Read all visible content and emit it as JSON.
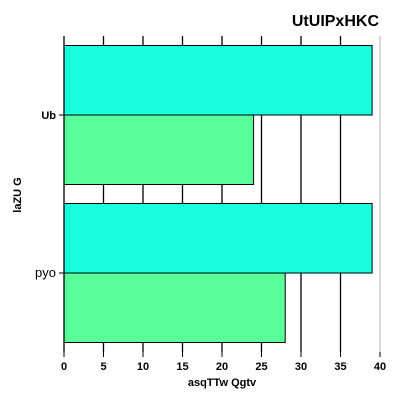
{
  "chart_data": {
    "type": "bar",
    "orientation": "horizontal",
    "title": "UtUIPxHKC",
    "xlabel": "asqTTw  Qgtv",
    "ylabel": "laZU G",
    "categories": [
      "Ub",
      "pyo"
    ],
    "series": [
      {
        "values": [
          39,
          39
        ],
        "color": "#19ffe0"
      },
      {
        "values": [
          24,
          28
        ],
        "color": "#58ff9a"
      }
    ],
    "xlim": [
      0,
      40
    ],
    "xticks": [
      0,
      5,
      10,
      15,
      20,
      25,
      30,
      35,
      40
    ],
    "grid": "vertical",
    "legend": "none"
  }
}
